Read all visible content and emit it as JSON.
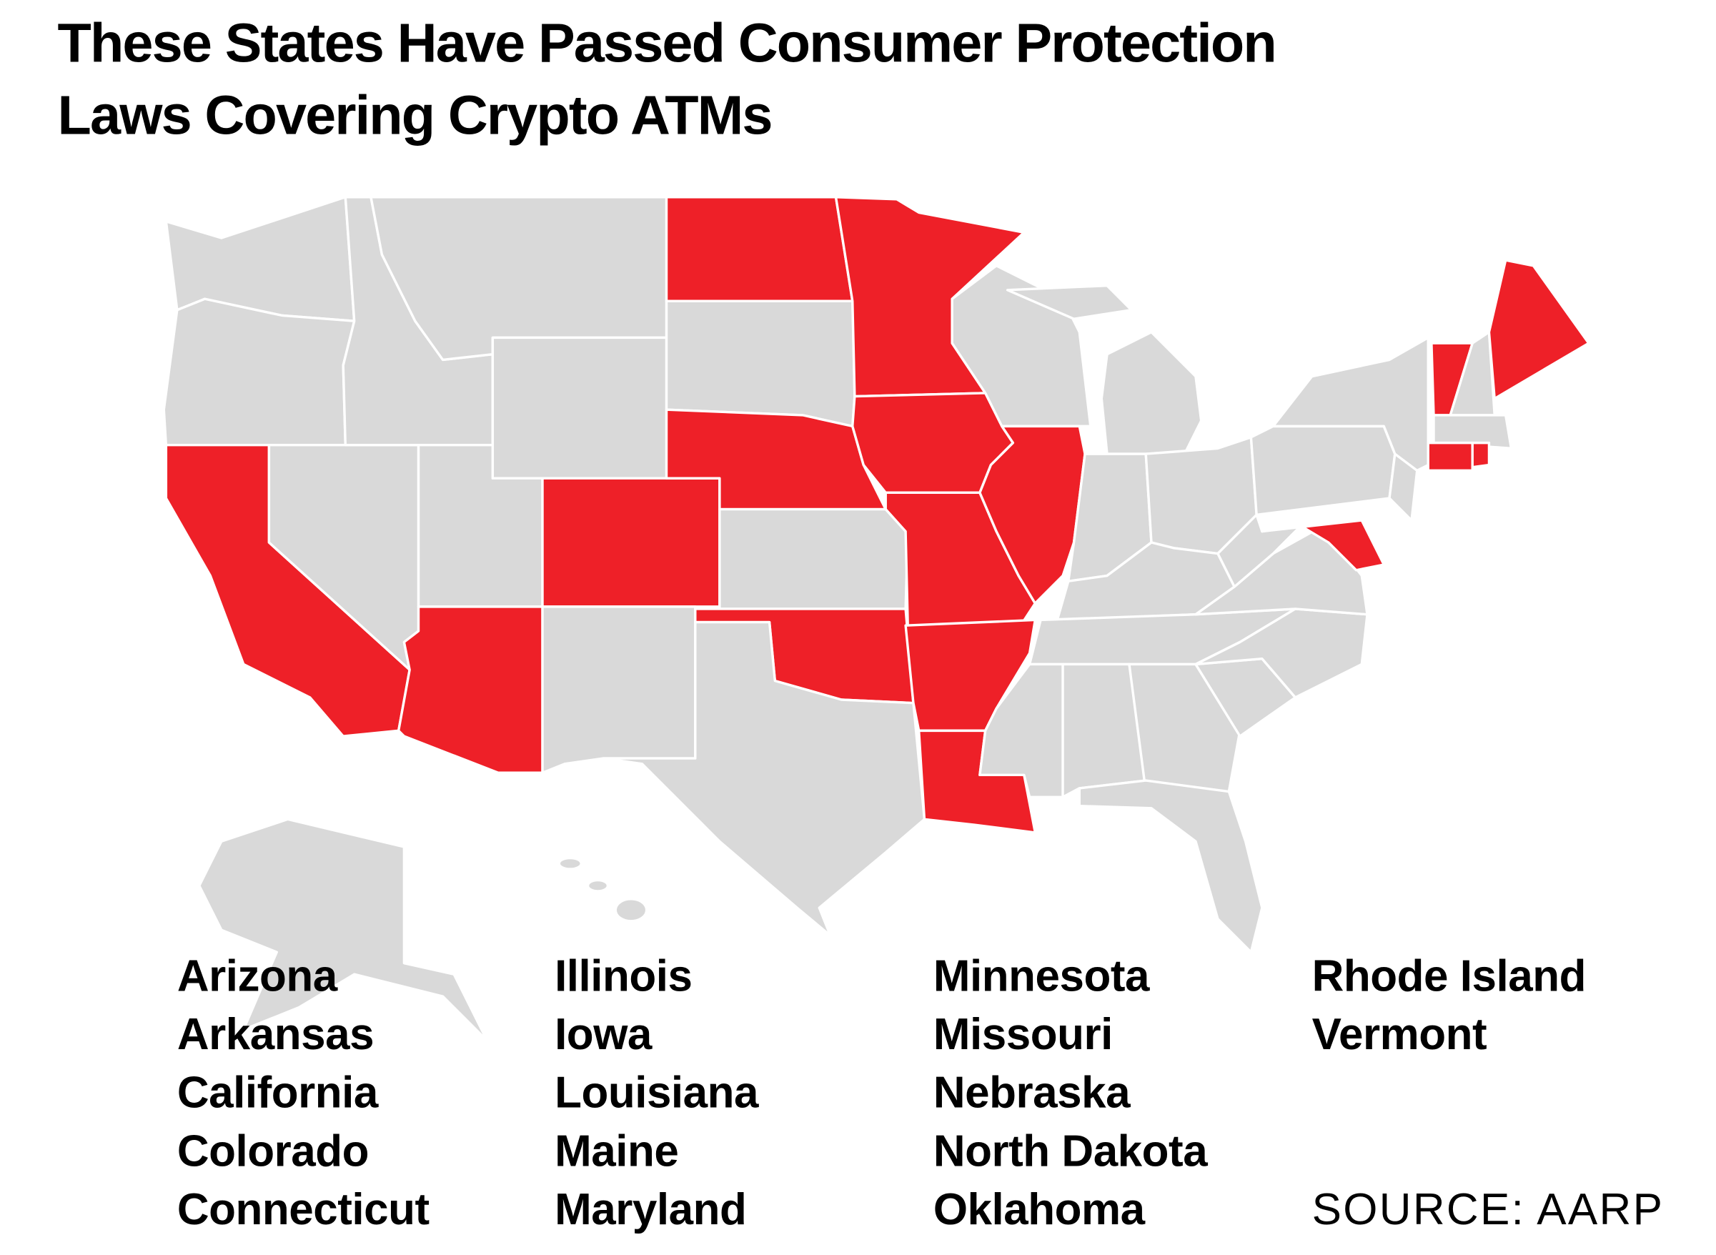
{
  "title": [
    "These States Have Passed Consumer Protection",
    "Laws Covering Crypto ATMs"
  ],
  "states": [
    [
      "Arizona",
      "Arkansas",
      "California",
      "Colorado",
      "Connecticut"
    ],
    [
      "Illinois",
      "Iowa",
      "Louisiana",
      "Maine",
      "Maryland"
    ],
    [
      "Minnesota",
      "Missouri",
      "Nebraska",
      "North Dakota",
      "Oklahoma"
    ],
    [
      "Rhode Island",
      "Vermont"
    ]
  ],
  "source": "SOURCE: AARP"
}
